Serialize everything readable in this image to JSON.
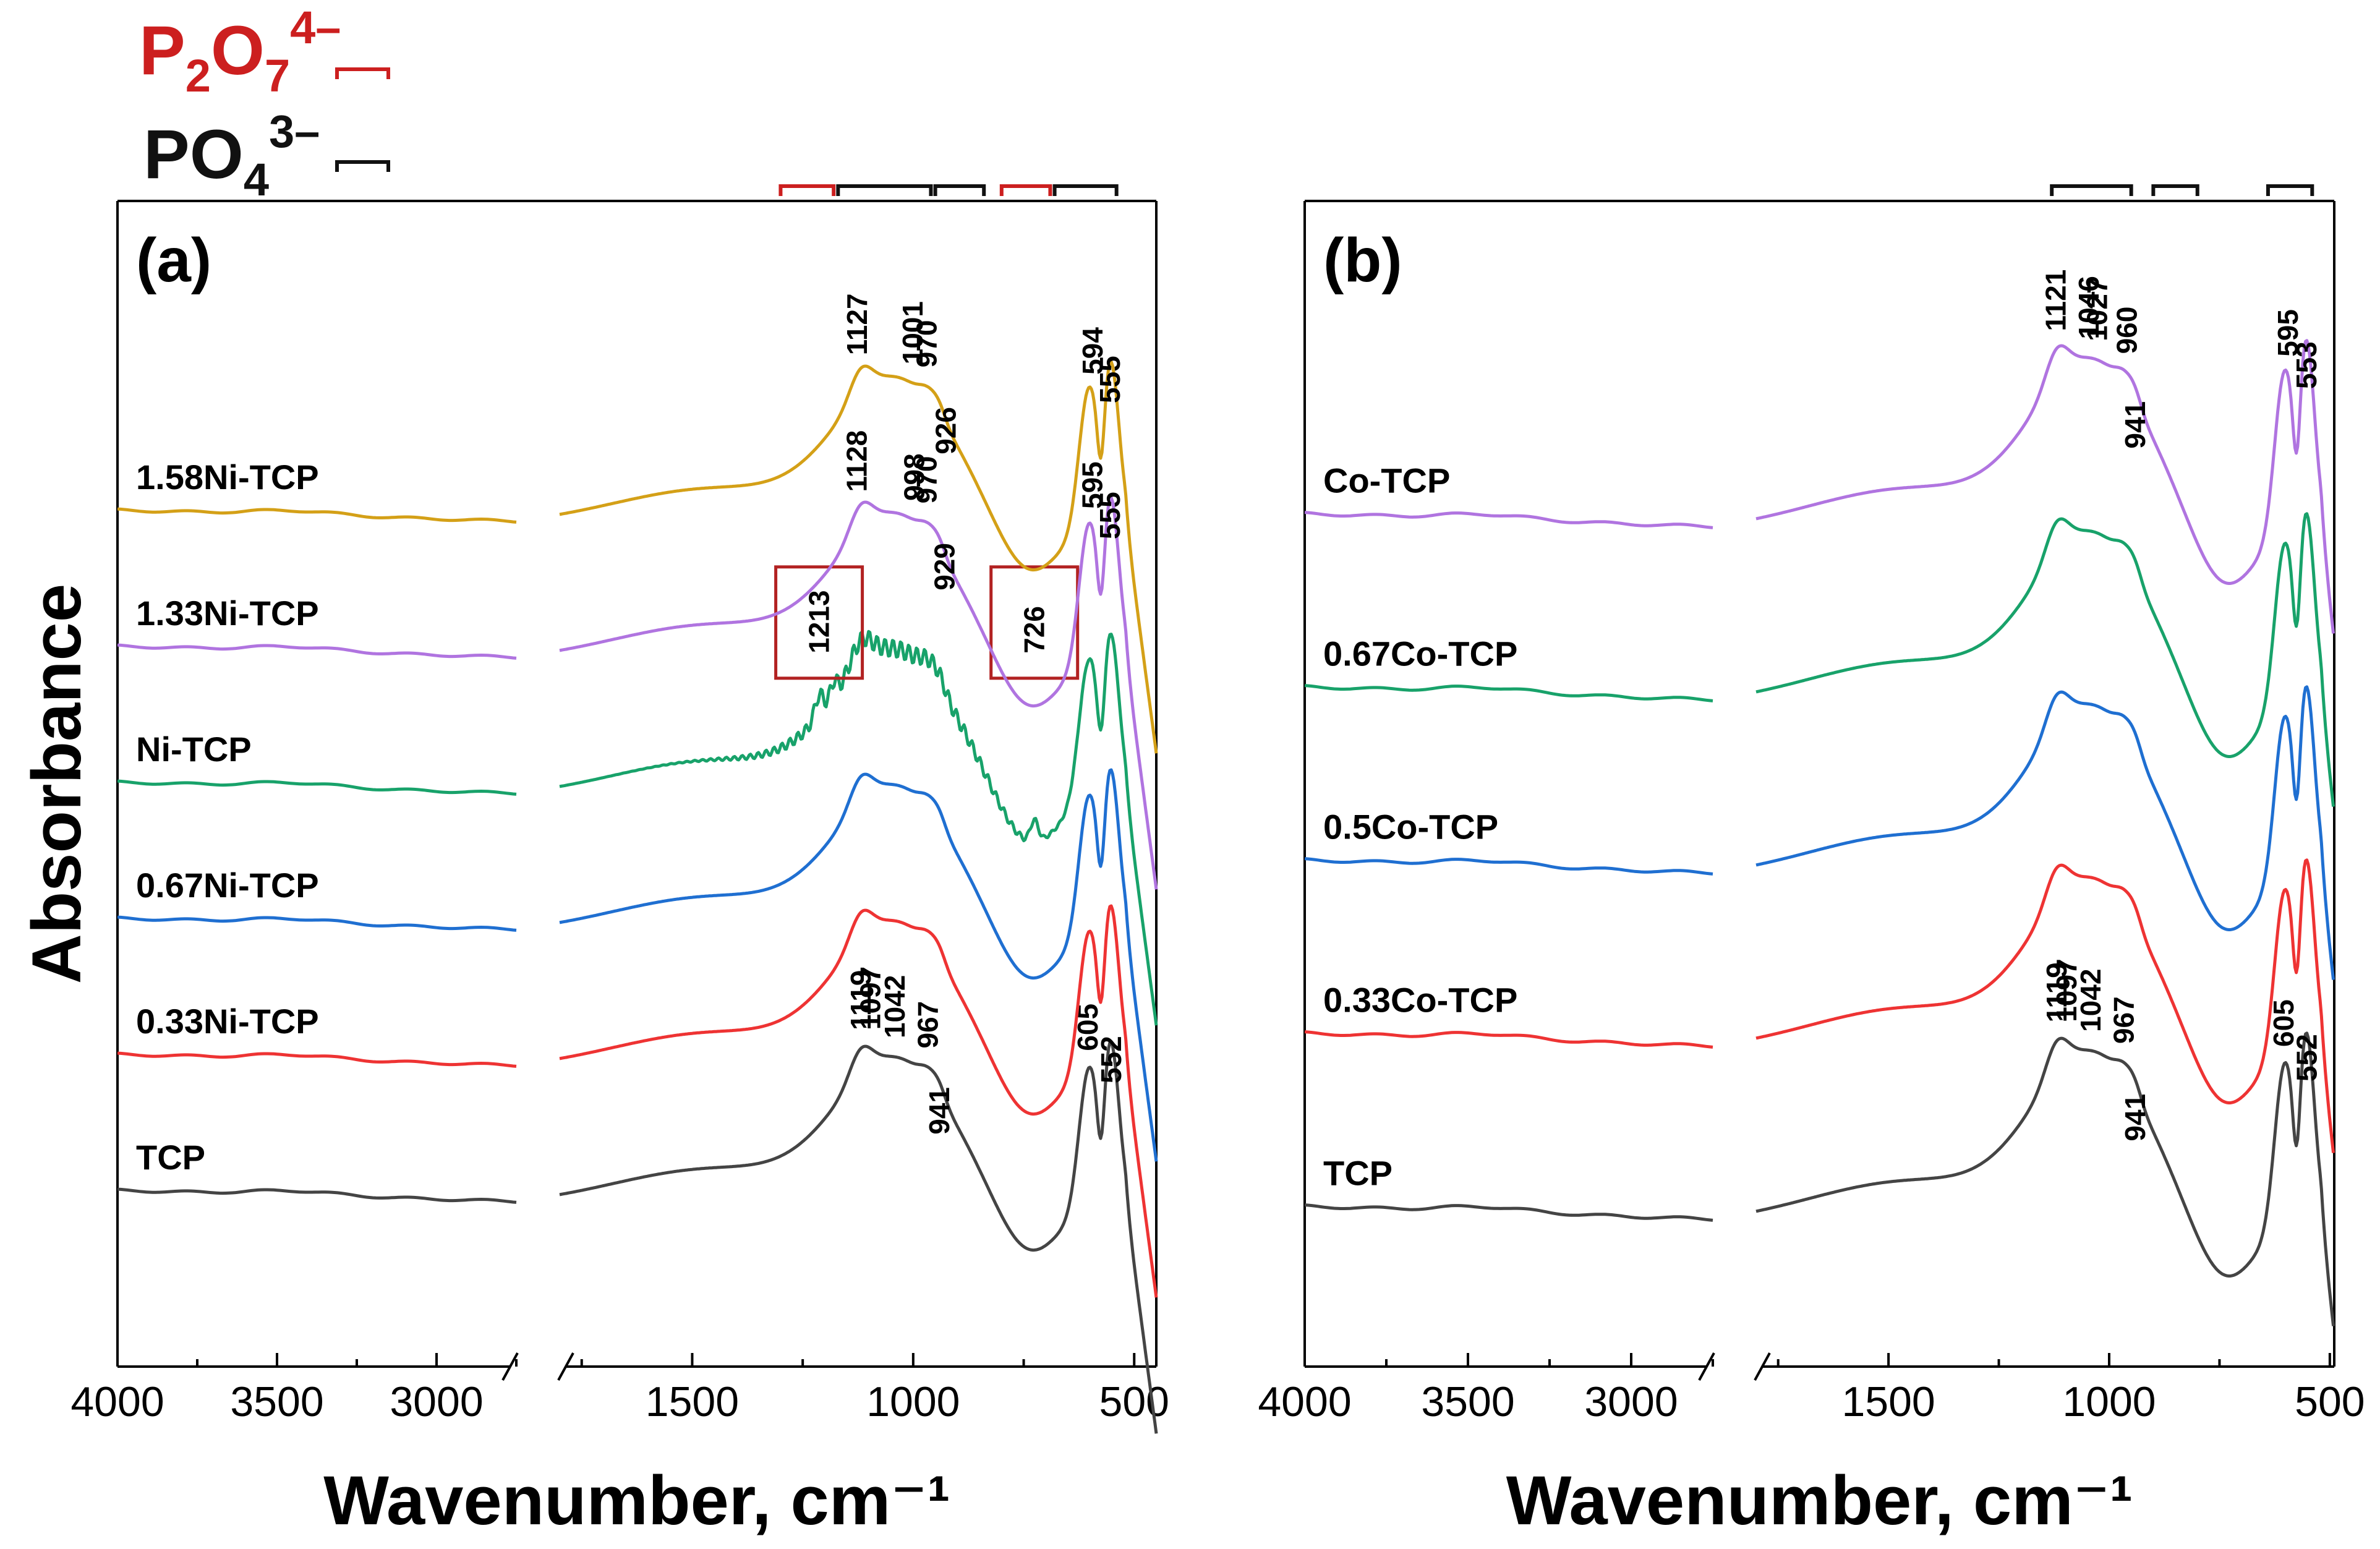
{
  "legend": {
    "items": [
      {
        "base": "P",
        "sub1": "2",
        "mid": "O",
        "sub2": "7",
        "sup": "4–",
        "color": "#cc1f1f"
      },
      {
        "base": "PO",
        "sub1": "4",
        "mid": "",
        "sub2": "",
        "sup": "3–",
        "color": "#111111"
      }
    ]
  },
  "colors": {
    "TCP": "#444444",
    "red": "#ee3333",
    "blue": "#1f6fd1",
    "green": "#18a26a",
    "purple": "#b074e0",
    "gold": "#d4a017",
    "pyro_bracket": "#cc1f1f",
    "ortho_bracket": "#111111",
    "highlight_box": "#b22222"
  },
  "chart_data": [
    {
      "panel": "(a)",
      "type": "line",
      "xlabel": "Wavenumber, cm⁻¹",
      "ylabel": "Absorbance",
      "xlim": [
        4000,
        450
      ],
      "x_break": [
        2750,
        1800
      ],
      "xticks": [
        4000,
        3500,
        3000,
        1500,
        1000,
        500
      ],
      "series": [
        {
          "name": "TCP",
          "color_key": "TCP",
          "offset": 0,
          "peaks": [
            1119,
            1097,
            1042,
            967,
            941,
            605,
            552
          ]
        },
        {
          "name": "0.33Ni-TCP",
          "color_key": "red",
          "offset": 1,
          "peaks": []
        },
        {
          "name": "0.67Ni-TCP",
          "color_key": "blue",
          "offset": 2,
          "peaks": []
        },
        {
          "name": "Ni-TCP",
          "color_key": "green",
          "offset": 3,
          "peaks": [
            1213,
            726
          ]
        },
        {
          "name": "1.33Ni-TCP",
          "color_key": "purple",
          "offset": 4,
          "peaks": [
            1128,
            998,
            970,
            929,
            595,
            555
          ]
        },
        {
          "name": "1.58Ni-TCP",
          "color_key": "gold",
          "offset": 5,
          "peaks": [
            1127,
            1001,
            970,
            926,
            594,
            555
          ]
        }
      ],
      "brackets": [
        {
          "type": "pyro",
          "range": [
            1300,
            1180
          ]
        },
        {
          "type": "ortho",
          "range": [
            1170,
            960
          ]
        },
        {
          "type": "ortho",
          "range": [
            950,
            840
          ]
        },
        {
          "type": "pyro",
          "range": [
            800,
            690
          ]
        },
        {
          "type": "ortho",
          "range": [
            680,
            540
          ]
        }
      ],
      "highlight_boxes": [
        1213,
        726
      ]
    },
    {
      "panel": "(b)",
      "type": "line",
      "xlabel": "Wavenumber, cm⁻¹",
      "ylabel": "",
      "xlim": [
        4000,
        490
      ],
      "x_break": [
        2750,
        1800
      ],
      "xticks": [
        4000,
        3500,
        3000,
        1500,
        1000,
        500
      ],
      "series": [
        {
          "name": "TCP",
          "color_key": "TCP",
          "offset": 0,
          "peaks": [
            1119,
            1097,
            1042,
            967,
            941,
            605,
            552
          ]
        },
        {
          "name": "0.33Co-TCP",
          "color_key": "red",
          "offset": 1,
          "peaks": []
        },
        {
          "name": "0.5Co-TCP",
          "color_key": "blue",
          "offset": 2,
          "peaks": []
        },
        {
          "name": "0.67Co-TCP",
          "color_key": "green",
          "offset": 3,
          "peaks": []
        },
        {
          "name": "Co-TCP",
          "color_key": "purple",
          "offset": 4,
          "peaks": [
            1121,
            1046,
            1027,
            960,
            941,
            595,
            553
          ]
        }
      ],
      "brackets": [
        {
          "type": "ortho",
          "range": [
            1130,
            950
          ]
        },
        {
          "type": "ortho",
          "range": [
            900,
            800
          ]
        },
        {
          "type": "ortho",
          "range": [
            640,
            540
          ]
        }
      ],
      "highlight_boxes": []
    }
  ]
}
